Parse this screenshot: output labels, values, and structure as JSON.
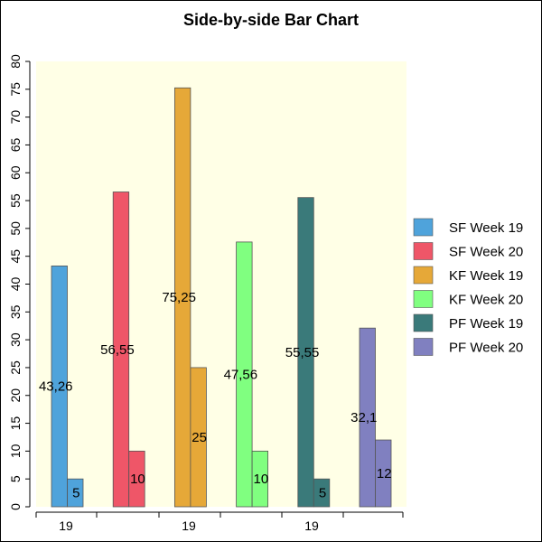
{
  "chart_data": {
    "type": "bar",
    "title": "Side-by-side Bar Chart",
    "xlabel": "",
    "ylabel": "",
    "ylim": [
      0,
      80
    ],
    "yticks": [
      0,
      5,
      10,
      15,
      20,
      25,
      30,
      35,
      40,
      45,
      50,
      55,
      60,
      65,
      70,
      75,
      80
    ],
    "y_tick_label_orientation": "rotated-90",
    "plot_background": "#ffffe6",
    "legend_position": "right",
    "grid": false,
    "x_tick_labels": [
      "19",
      "19",
      "19"
    ],
    "series": [
      {
        "name": "SF Week 19",
        "values": [
          43.26
        ],
        "color": "#4fa3db",
        "label": "43,26"
      },
      {
        "name": "SF Week 20",
        "values": [
          56.55
        ],
        "color": "#ef5668",
        "label": "56,55"
      },
      {
        "name": "KF Week 19",
        "values": [
          75.25
        ],
        "color": "#e6a838",
        "label": "75,25"
      },
      {
        "name": "KF Week 20",
        "values": [
          47.56
        ],
        "color": "#80ff80",
        "label": "47,56"
      },
      {
        "name": "PF Week 19",
        "values": [
          55.55
        ],
        "color": "#3a7a7a",
        "label": "55,55"
      },
      {
        "name": "PF Week 20",
        "values": [
          32.1
        ],
        "color": "#8080c0",
        "label": "32,1"
      }
    ],
    "groups": [
      {
        "series": "SF Week 19",
        "bars": [
          {
            "value": 43.26,
            "label": "43,26"
          },
          {
            "value": 5,
            "label": "5"
          }
        ]
      },
      {
        "series": "SF Week 20",
        "bars": [
          {
            "value": 56.55,
            "label": "56,55"
          },
          {
            "value": 10,
            "label": "10"
          }
        ]
      },
      {
        "series": "KF Week 19",
        "bars": [
          {
            "value": 75.25,
            "label": "75,25"
          },
          {
            "value": 25,
            "label": "25"
          }
        ]
      },
      {
        "series": "KF Week 20",
        "bars": [
          {
            "value": 47.56,
            "label": "47,56"
          },
          {
            "value": 10,
            "label": "10"
          }
        ]
      },
      {
        "series": "PF Week 19",
        "bars": [
          {
            "value": 55.55,
            "label": "55,55"
          },
          {
            "value": 5,
            "label": "5"
          }
        ]
      },
      {
        "series": "PF Week 20",
        "bars": [
          {
            "value": 32.1,
            "label": "32,1"
          },
          {
            "value": 12,
            "label": "12"
          }
        ]
      }
    ]
  }
}
